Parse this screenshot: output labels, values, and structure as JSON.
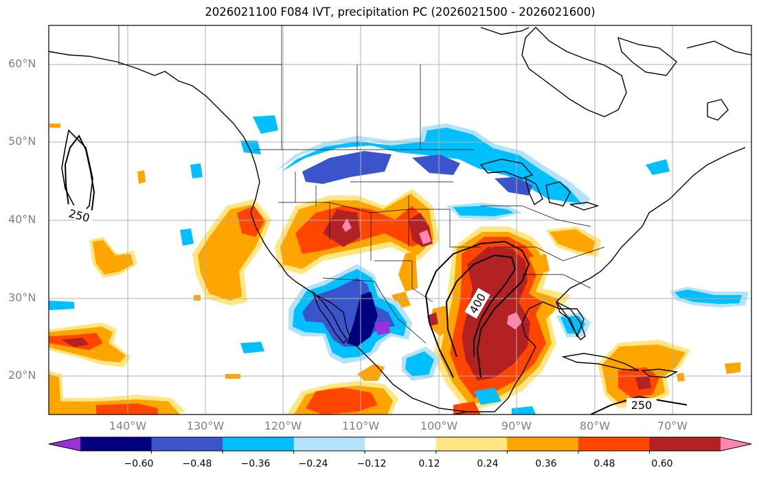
{
  "title": "2026021100 F084 IVT, precipitation PC (2026021500 - 2026021600)",
  "axes": {
    "lat_labels": [
      "60°N",
      "50°N",
      "40°N",
      "30°N",
      "20°N"
    ],
    "lon_labels": [
      "140°W",
      "130°W",
      "120°W",
      "110°W",
      "100°W",
      "90°W",
      "80°W",
      "70°W"
    ]
  },
  "contour_labels": [
    "250",
    "400",
    "250"
  ],
  "colorbar": {
    "ticks": [
      "−0.60",
      "−0.48",
      "−0.36",
      "−0.24",
      "−0.12",
      "0.12",
      "0.24",
      "0.36",
      "0.48",
      "0.60"
    ],
    "colors": [
      "#9b30d9",
      "#000080",
      "#3a54cc",
      "#00bfff",
      "#b3e2fb",
      "#ffffff",
      "#ffe680",
      "#ffa500",
      "#ff4500",
      "#b22222",
      "#ff88b0"
    ]
  },
  "chart_data": {
    "type": "heatmap",
    "title": "2026021100 F084 IVT, precipitation PC (2026021500 - 2026021600)",
    "x_range": [
      -150,
      -60
    ],
    "y_range": [
      15,
      65
    ],
    "xticks": [
      -140,
      -130,
      -120,
      -110,
      -100,
      -90,
      -80,
      -70
    ],
    "yticks": [
      20,
      30,
      40,
      50,
      60
    ],
    "colorbar_levels": [
      -0.6,
      -0.48,
      -0.36,
      -0.24,
      -0.12,
      0.12,
      0.24,
      0.36,
      0.48,
      0.6
    ],
    "ivt_contours": [
      250,
      400
    ],
    "grid": true
  }
}
